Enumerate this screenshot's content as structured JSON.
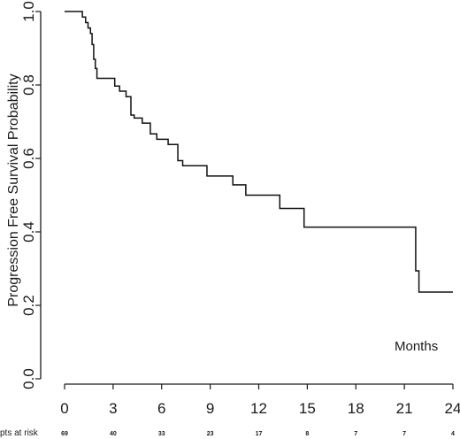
{
  "chart_data": {
    "type": "line",
    "step": true,
    "ylabel": "Progression Free Survival Probability",
    "xlabel": "Months",
    "xlim": [
      0,
      24
    ],
    "ylim": [
      0,
      1
    ],
    "x_ticks": [
      0,
      3,
      6,
      9,
      12,
      15,
      18,
      21,
      24
    ],
    "y_ticks": [
      "0.0",
      "0.2",
      "0.4",
      "0.6",
      "0.8",
      "1.0"
    ],
    "series": [
      {
        "x": [
          0,
          1.1,
          1.3,
          1.45,
          1.6,
          1.7,
          1.8,
          1.9,
          2.0,
          3.1,
          3.4,
          3.8,
          4.1,
          4.3,
          4.8,
          5.3,
          5.7,
          6.4,
          7.0,
          7.3,
          8.8,
          10.4,
          11.2,
          13.3,
          14.8,
          21.7,
          21.9,
          24.0
        ],
        "y": [
          1.0,
          0.985,
          0.97,
          0.955,
          0.94,
          0.91,
          0.87,
          0.845,
          0.818,
          0.797,
          0.783,
          0.768,
          0.718,
          0.71,
          0.696,
          0.667,
          0.652,
          0.638,
          0.594,
          0.58,
          0.552,
          0.528,
          0.5,
          0.464,
          0.413,
          0.294,
          0.236,
          0.236
        ]
      }
    ],
    "risk_table": {
      "label": "pts at risk",
      "values": [
        "69",
        "40",
        "33",
        "23",
        "17",
        "8",
        "7",
        "7",
        "4"
      ]
    }
  }
}
